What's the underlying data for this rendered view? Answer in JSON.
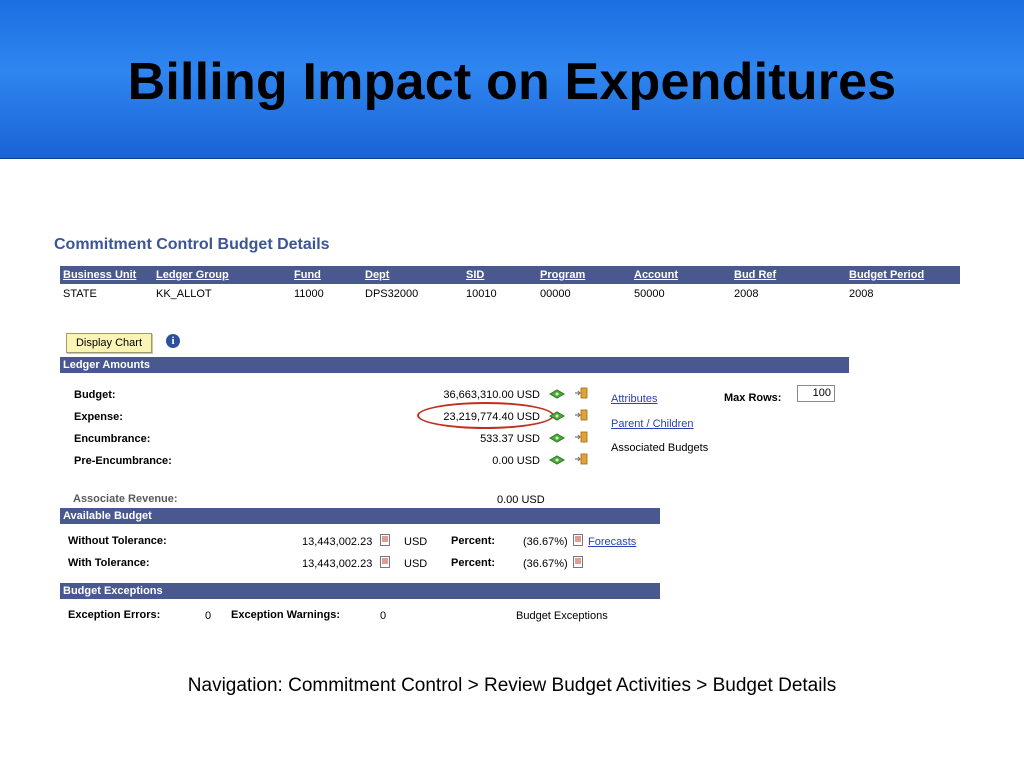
{
  "slide": {
    "title": "Billing Impact on Expenditures",
    "navigation": "Navigation: Commitment Control > Review Budget Activities > Budget Details"
  },
  "page": {
    "heading": "Commitment Control Budget Details"
  },
  "keys": {
    "headers": [
      "Business Unit",
      "Ledger Group",
      "Fund",
      "Dept",
      "SID",
      "Program",
      "Account",
      "Bud Ref",
      "Budget Period"
    ],
    "values": [
      "STATE",
      "KK_ALLOT",
      "11000",
      "DPS32000",
      "10010",
      "00000",
      "50000",
      "2008",
      "2008"
    ]
  },
  "toolbar": {
    "display_chart_label": "Display Chart",
    "info_glyph": "i"
  },
  "ledger_amounts": {
    "title": "Ledger Amounts",
    "rows": [
      {
        "label": "Budget:",
        "value": "36,663,310.00 USD"
      },
      {
        "label": "Expense:",
        "value": "23,219,774.40 USD"
      },
      {
        "label": "Encumbrance:",
        "value": "533.37 USD"
      },
      {
        "label": "Pre-Encumbrance:",
        "value": "0.00 USD"
      }
    ],
    "links": {
      "attributes": "Attributes",
      "parent_children": "Parent / Children",
      "associated_budgets": "Associated Budgets"
    },
    "max_rows_label": "Max Rows:",
    "max_rows_value": "100",
    "associate_revenue_label": "Associate Revenue:",
    "associate_revenue_value": "0.00 USD"
  },
  "available_budget": {
    "title": "Available Budget",
    "rows": [
      {
        "label": "Without Tolerance:",
        "amount": "13,443,002.23",
        "currency": "USD",
        "percent_label": "Percent:",
        "percent": "(36.67%)"
      },
      {
        "label": "With Tolerance:",
        "amount": "13,443,002.23",
        "currency": "USD",
        "percent_label": "Percent:",
        "percent": "(36.67%)"
      }
    ],
    "forecasts_link": "Forecasts"
  },
  "budget_exceptions": {
    "title": "Budget Exceptions",
    "errors_label": "Exception Errors:",
    "errors_value": "0",
    "warnings_label": "Exception Warnings:",
    "warnings_value": "0",
    "link": "Budget Exceptions"
  },
  "colors": {
    "banner": "#2f86f0",
    "header_bar": "#4a5890",
    "heading": "#3b5596",
    "link": "#2a3fb8",
    "highlight_ellipse": "#c0301e",
    "button_bg": "#fbf5b5"
  },
  "icons": {
    "money": "money-icon",
    "drilldown": "drilldown-icon",
    "pdf": "pdf-icon",
    "info": "info-icon"
  }
}
